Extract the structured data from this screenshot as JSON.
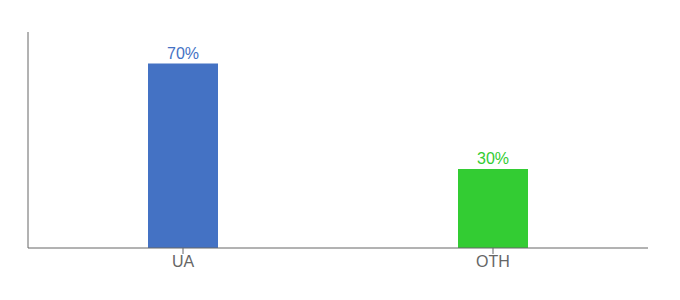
{
  "chart_data": {
    "type": "bar",
    "categories": [
      "UA",
      "OTH"
    ],
    "values": [
      70,
      30
    ],
    "value_labels": [
      "70%",
      "30%"
    ],
    "colors": [
      "#4472c4",
      "#33cc33"
    ],
    "ylim": [
      0,
      82
    ],
    "data_labels": true,
    "tick_labels": "x"
  }
}
